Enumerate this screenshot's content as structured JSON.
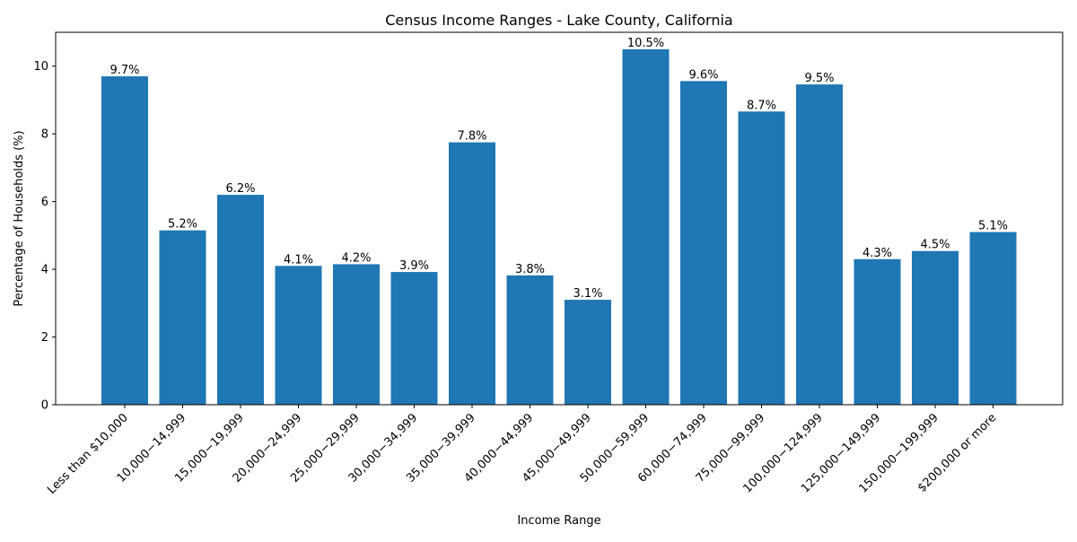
{
  "chart_data": {
    "type": "bar",
    "title": "Census Income Ranges - Lake County, California",
    "xlabel": "Income Range",
    "ylabel": "Percentage of Households (%)",
    "ylim": [
      0,
      11
    ],
    "yticks": [
      0,
      2,
      4,
      6,
      8,
      10
    ],
    "grid": false,
    "legend": "none",
    "bar_color": "#1f77b4",
    "categories": [
      "Less than $10,000",
      "$10,000 - $14,999",
      "$15,000 - $19,999",
      "$20,000 - $24,999",
      "$25,000 - $29,999",
      "$30,000 - $34,999",
      "$35,000 - $39,999",
      "$40,000 - $44,999",
      "$45,000 - $49,999",
      "$50,000 - $59,999",
      "$60,000 - $74,999",
      "$75,000 - $99,999",
      "$100,000 - $124,999",
      "$125,000 - $149,999",
      "$150,000 - $199,999",
      "$200,000 or more"
    ],
    "category_tick_labels": [
      "Less than $10,000",
      "10,000−14,999",
      "15,000−19,999",
      "20,000−24,999",
      "25,000−29,999",
      "30,000−34,999",
      "35,000−39,999",
      "40,000−44,999",
      "45,000−49,999",
      "50,000−59,999",
      "60,000−74,999",
      "75,000−99,999",
      "100,000−124,999",
      "125,000−149,999",
      "150,000−199,999",
      "$200,000 or more"
    ],
    "values": [
      9.7,
      5.15,
      6.2,
      4.1,
      4.15,
      3.92,
      7.75,
      3.82,
      3.1,
      10.5,
      9.56,
      8.66,
      9.46,
      4.3,
      4.54,
      5.1
    ],
    "data_labels": [
      "9.7%",
      "5.2%",
      "6.2%",
      "4.1%",
      "4.2%",
      "3.9%",
      "7.8%",
      "3.8%",
      "3.1%",
      "10.5%",
      "9.6%",
      "8.7%",
      "9.5%",
      "4.3%",
      "4.5%",
      "5.1%"
    ]
  }
}
